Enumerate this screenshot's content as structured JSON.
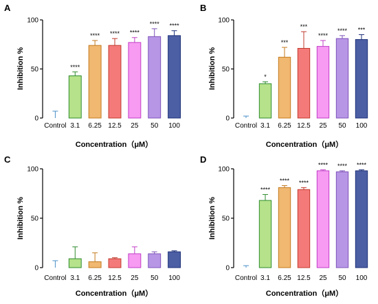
{
  "colors": {
    "Control": "#4a8fc8",
    "3.1": "#b5e28a",
    "6.25": "#f0b870",
    "12.5": "#f47a7a",
    "25": "#f79af2",
    "50": "#b796e6",
    "100": "#4c5fa4"
  },
  "edge_colors": {
    "Control": "#4a8fc8",
    "3.1": "#2e8b2e",
    "6.25": "#c47a1e",
    "12.5": "#c0392b",
    "25": "#c13ec7",
    "50": "#7d52b8",
    "100": "#1c2f78"
  },
  "chart_data": [
    {
      "panel": "A",
      "type": "bar",
      "xlabel": "Concentration（μM）",
      "ylabel": "Inhibition %",
      "ylim": [
        0,
        100
      ],
      "yticks": [
        "0",
        "50",
        "100"
      ],
      "categories": [
        "Control",
        "3.1",
        "6.25",
        "12.5",
        "25",
        "50",
        "100"
      ],
      "values": [
        0,
        43,
        74,
        74,
        77,
        83,
        84
      ],
      "errors": [
        7,
        4,
        5,
        7,
        5,
        8,
        5
      ],
      "significance": [
        "",
        "****",
        "****",
        "****",
        "****",
        "****",
        "****"
      ]
    },
    {
      "panel": "B",
      "type": "bar",
      "xlabel": "Concentration（μM）",
      "ylabel": "Inhibition %",
      "ylim": [
        0,
        100
      ],
      "yticks": [
        "0",
        "50",
        "100"
      ],
      "categories": [
        "Control",
        "3.1",
        "6.25",
        "12.5",
        "25",
        "50",
        "100"
      ],
      "values": [
        0,
        35,
        62,
        71,
        73,
        81,
        80
      ],
      "errors": [
        2,
        2,
        10,
        17,
        6,
        3,
        5
      ],
      "significance": [
        "",
        "*",
        "***",
        "***",
        "****",
        "****",
        "***"
      ]
    },
    {
      "panel": "C",
      "type": "bar",
      "xlabel": "Concentration（μM）",
      "ylabel": "Inhibition %",
      "ylim": [
        0,
        100
      ],
      "yticks": [
        "0",
        "50",
        "100"
      ],
      "categories": [
        "Control",
        "3.1",
        "6.25",
        "12.5",
        "25",
        "50",
        "100"
      ],
      "values": [
        0,
        9,
        6,
        9,
        14,
        14,
        16
      ],
      "errors": [
        7,
        12,
        9,
        1,
        7,
        2,
        1
      ],
      "significance": [
        "",
        "",
        "",
        "",
        "",
        "",
        ""
      ]
    },
    {
      "panel": "D",
      "type": "bar",
      "xlabel": "Concentration（μM）",
      "ylabel": "Inhibition %",
      "ylim": [
        0,
        100
      ],
      "yticks": [
        "0",
        "50",
        "100"
      ],
      "categories": [
        "Control",
        "3.1",
        "6.25",
        "12.5",
        "25",
        "50",
        "100"
      ],
      "values": [
        0,
        68,
        81,
        79,
        98,
        97,
        98
      ],
      "errors": [
        2,
        6,
        2,
        2,
        1,
        1,
        1
      ],
      "significance": [
        "",
        "****",
        "****",
        "****",
        "****",
        "****",
        "****"
      ]
    }
  ]
}
